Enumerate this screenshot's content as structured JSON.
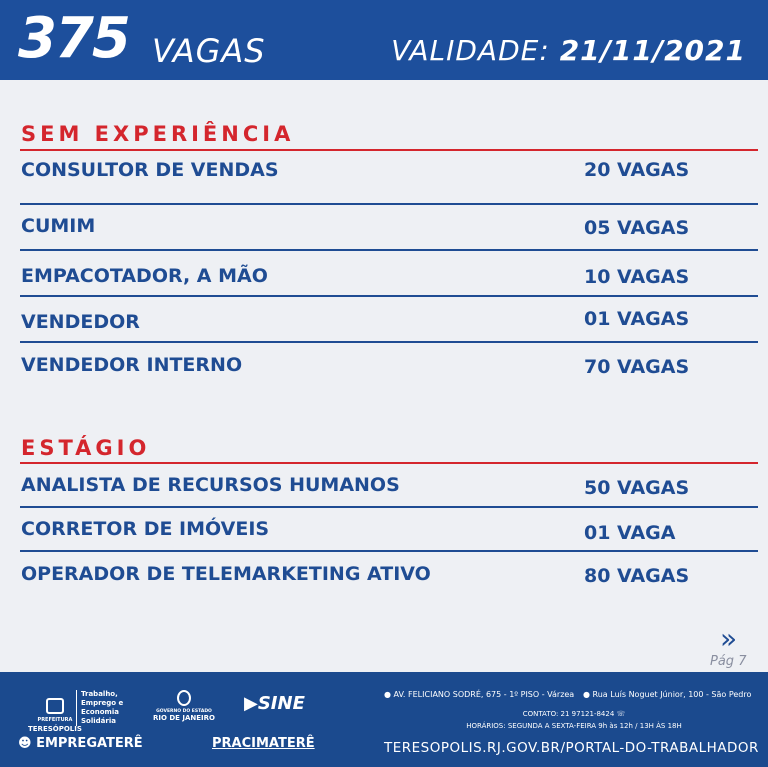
{
  "header": {
    "count": "375",
    "count_label": "VAGAS",
    "validity_label": "VALIDADE:",
    "validity_date": "21/11/2021"
  },
  "sections": [
    {
      "title": "SEM EXPERIÊNCIA",
      "rows": [
        {
          "role": "CONSULTOR DE VENDAS",
          "qty": "20 VAGAS"
        },
        {
          "role": "CUMIM",
          "qty": "05 VAGAS"
        },
        {
          "role": "EMPACOTADOR, A MÃO",
          "qty": "10 VAGAS"
        },
        {
          "role": "VENDEDOR",
          "qty": "01 VAGAS"
        },
        {
          "role": "VENDEDOR INTERNO",
          "qty": "70 VAGAS"
        }
      ]
    },
    {
      "title": "ESTÁGIO",
      "rows": [
        {
          "role": "ANALISTA DE RECURSOS HUMANOS",
          "qty": "50 VAGAS"
        },
        {
          "role": "CORRETOR DE IMÓVEIS",
          "qty": "01 VAGA"
        },
        {
          "role": "OPERADOR DE TELEMARKETING ATIVO",
          "qty": "80 VAGAS"
        }
      ]
    }
  ],
  "nav": {
    "page": "Pág 7",
    "next_icon": "double-chevron-right"
  },
  "footer": {
    "prefeitura": "PREFEITURA",
    "city": "TERESÓPOLIS",
    "secretaria": "Trabalho, Emprego e Economia Solidária",
    "gov": "GOVERNO DO ESTADO",
    "rj": "RIO DE JANEIRO",
    "sine": "SINE",
    "empregatere": "EMPREGATERÊ",
    "pracimatere": "PRACIMATERÊ",
    "address1": "AV. FELICIANO SODRÉ, 675 - 1º PISO - Várzea",
    "address2": "Rua Luís Noguet Júnior, 100 - São Pedro",
    "contact": "CONTATO: 21 97121-8424",
    "hours": "HORÁRIOS: SEGUNDA A SEXTA-FEIRA  9h às 12h / 13H ÀS 18H",
    "url": "TERESOPOLIS.RJ.GOV.BR/PORTAL-DO-TRABALHADOR"
  },
  "colors": {
    "header": "#1d4f9c",
    "accent_red": "#d4262d",
    "text_blue": "#1f4c93",
    "footer": "#1b4a8e"
  }
}
